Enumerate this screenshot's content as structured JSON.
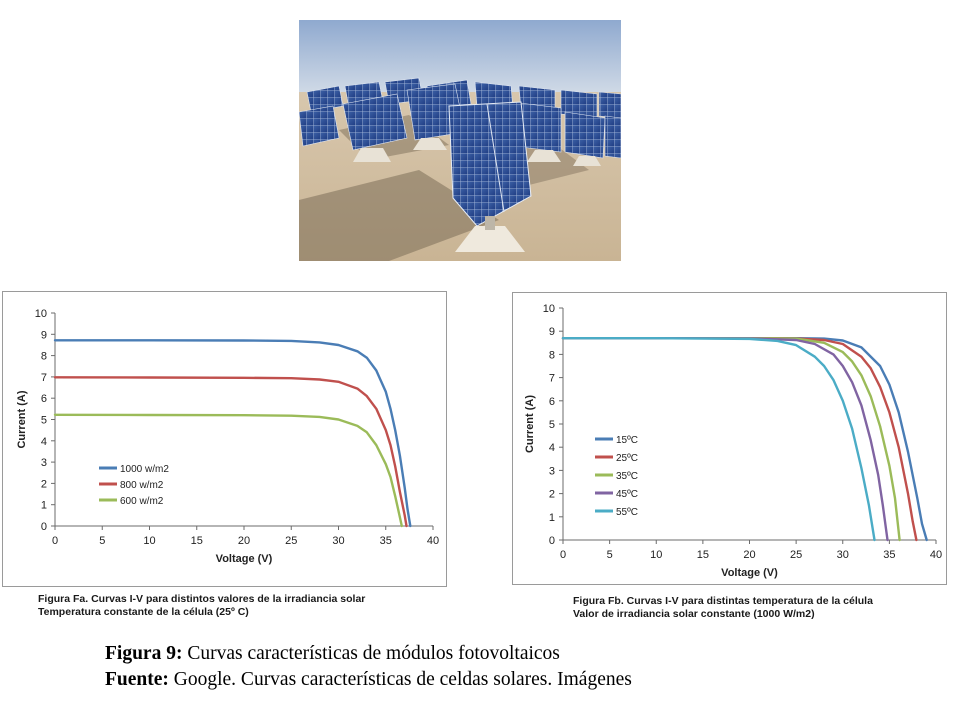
{
  "photo": {
    "subject": "solar-panel-field-photo"
  },
  "chart_data": [
    {
      "type": "line",
      "xlabel": "Voltage (V)",
      "ylabel": "Current (A)",
      "xlim": [
        0,
        40
      ],
      "ylim": [
        0,
        10
      ],
      "xticks": [
        "0",
        "5",
        "10",
        "15",
        "20",
        "25",
        "30",
        "35",
        "40"
      ],
      "yticks": [
        "0",
        "1",
        "2",
        "3",
        "4",
        "5",
        "6",
        "7",
        "8",
        "9",
        "10"
      ],
      "grid": false,
      "legend": "lower-left",
      "caption_line1": "Figura Fa.  Curvas I-V para distintos valores de la  irradiancia solar",
      "caption_line2": "Temperatura constante de la célula (25º C)",
      "series": [
        {
          "name": "1000 w/m2",
          "color": "#4a7db5",
          "x": [
            0,
            10,
            20,
            25,
            28,
            30,
            32,
            33,
            34,
            35,
            35.5,
            36,
            36.5,
            37,
            37.3,
            37.6
          ],
          "y": [
            8.72,
            8.72,
            8.71,
            8.69,
            8.62,
            8.5,
            8.2,
            7.9,
            7.3,
            6.3,
            5.5,
            4.5,
            3.3,
            1.8,
            0.8,
            0
          ]
        },
        {
          "name": "800 w/m2",
          "color": "#c0504d",
          "x": [
            0,
            10,
            20,
            25,
            28,
            30,
            32,
            33,
            34,
            35,
            35.5,
            36,
            36.5,
            37,
            37.2
          ],
          "y": [
            6.98,
            6.97,
            6.96,
            6.94,
            6.88,
            6.77,
            6.45,
            6.1,
            5.5,
            4.5,
            3.8,
            2.8,
            1.6,
            0.5,
            0
          ]
        },
        {
          "name": "600 w/m2",
          "color": "#9bbb59",
          "x": [
            0,
            10,
            20,
            25,
            28,
            30,
            32,
            33,
            34,
            35,
            35.5,
            36,
            36.4,
            36.7
          ],
          "y": [
            5.22,
            5.21,
            5.2,
            5.18,
            5.12,
            5.0,
            4.7,
            4.4,
            3.8,
            2.9,
            2.3,
            1.4,
            0.6,
            0
          ]
        }
      ]
    },
    {
      "type": "line",
      "xlabel": "Voltage (V)",
      "ylabel": "Current (A)",
      "xlim": [
        0,
        40
      ],
      "ylim": [
        0,
        10
      ],
      "xticks": [
        "0",
        "5",
        "10",
        "15",
        "20",
        "25",
        "30",
        "35",
        "40"
      ],
      "yticks": [
        "0",
        "1",
        "2",
        "3",
        "4",
        "5",
        "6",
        "7",
        "8",
        "9",
        "10"
      ],
      "grid": false,
      "legend": "center-right",
      "caption_line1": "Figura Fb. Curvas I-V para distintas temperatura de la célula",
      "caption_line2": "Valor de irradiancia solar constante (1000 W/m2)",
      "series": [
        {
          "name": "15ºC",
          "color": "#4a7db5",
          "x": [
            0,
            10,
            20,
            25,
            28,
            30,
            32,
            34,
            35,
            36,
            37,
            38,
            38.5,
            39
          ],
          "y": [
            8.7,
            8.7,
            8.7,
            8.7,
            8.68,
            8.6,
            8.3,
            7.5,
            6.7,
            5.5,
            3.8,
            1.8,
            0.7,
            0
          ]
        },
        {
          "name": "25ºC",
          "color": "#c0504d",
          "x": [
            0,
            10,
            20,
            25,
            28,
            30,
            32,
            33,
            34,
            35,
            36,
            37,
            37.5,
            37.9
          ],
          "y": [
            8.7,
            8.7,
            8.7,
            8.69,
            8.62,
            8.45,
            7.9,
            7.4,
            6.6,
            5.5,
            4.0,
            2.0,
            0.8,
            0
          ]
        },
        {
          "name": "35ºC",
          "color": "#9bbb59",
          "x": [
            0,
            10,
            20,
            25,
            28,
            30,
            31,
            32,
            33,
            34,
            35,
            35.6,
            36.1
          ],
          "y": [
            8.7,
            8.7,
            8.7,
            8.68,
            8.5,
            8.1,
            7.7,
            7.1,
            6.2,
            4.9,
            3.2,
            1.8,
            0
          ]
        },
        {
          "name": "45ºC",
          "color": "#8064a2",
          "x": [
            0,
            10,
            20,
            25,
            27,
            29,
            30,
            31,
            32,
            33,
            33.8,
            34.3,
            34.8
          ],
          "y": [
            8.7,
            8.7,
            8.69,
            8.62,
            8.45,
            8.0,
            7.5,
            6.8,
            5.8,
            4.3,
            2.8,
            1.5,
            0
          ]
        },
        {
          "name": "55ºC",
          "color": "#4bacc6",
          "x": [
            0,
            10,
            20,
            23,
            25,
            27,
            28,
            29,
            30,
            31,
            32,
            32.8,
            33.4
          ],
          "y": [
            8.7,
            8.7,
            8.67,
            8.58,
            8.4,
            7.9,
            7.5,
            6.9,
            6.0,
            4.8,
            3.1,
            1.5,
            0
          ]
        }
      ]
    }
  ],
  "caption": {
    "line1_label": "Figura 9:",
    "line1_text": " Curvas características de módulos fotovoltaicos",
    "line2_label": "Fuente:",
    "line2_text": " Google. Curvas características de celdas solares. Imágenes"
  }
}
